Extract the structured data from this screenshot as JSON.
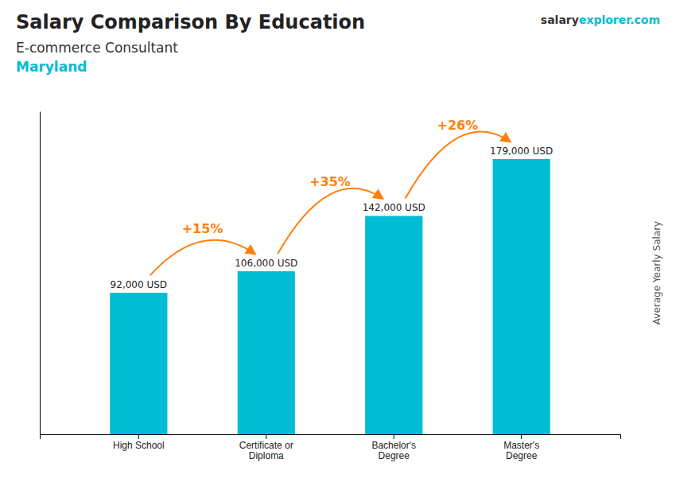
{
  "chart_data": {
    "type": "bar",
    "title": "Salary Comparison By Education",
    "subtitle": [
      "E-commerce Consultant",
      "Maryland"
    ],
    "brand": [
      "salary",
      "explorer",
      ".com"
    ],
    "y_label": "Average Yearly Salary",
    "categories": [
      "High School",
      "Certificate or\nDiploma",
      "Bachelor's\nDegree",
      "Master's\nDegree"
    ],
    "values": [
      92000,
      106000,
      142000,
      179000
    ],
    "value_labels": [
      "92,000 USD",
      "106,000 USD",
      "142,000 USD",
      "179,000 USD"
    ],
    "data_labels": true,
    "annotations": [
      "+15%",
      "+35%",
      "+26%"
    ],
    "color": "#00bcd4",
    "ylim": [
      0,
      210000
    ],
    "tick_labels": "x",
    "grid": false
  }
}
